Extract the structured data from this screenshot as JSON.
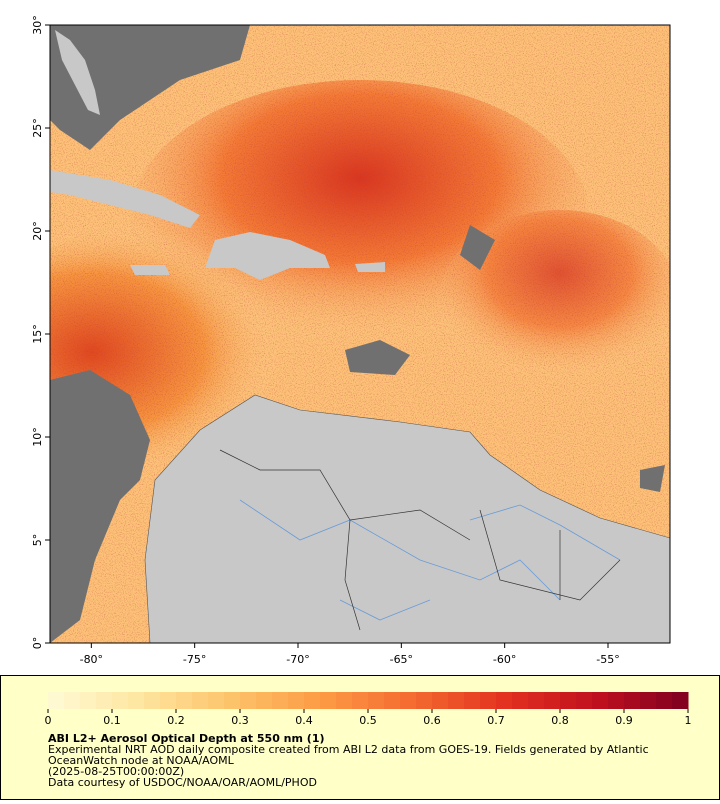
{
  "map": {
    "lon_range": [
      -82,
      -52
    ],
    "lat_range": [
      0,
      30
    ],
    "lon_ticks": [
      {
        "value": -80,
        "label": "-80°"
      },
      {
        "value": -75,
        "label": "-75°"
      },
      {
        "value": -70,
        "label": "-70°"
      },
      {
        "value": -65,
        "label": "-65°"
      },
      {
        "value": -60,
        "label": "-60°"
      },
      {
        "value": -55,
        "label": "-55°"
      }
    ],
    "lat_ticks": [
      {
        "value": 0,
        "label": "0°"
      },
      {
        "value": 5,
        "label": "5°"
      },
      {
        "value": 10,
        "label": "10°"
      },
      {
        "value": 15,
        "label": "15°"
      },
      {
        "value": 20,
        "label": "20°"
      },
      {
        "value": 25,
        "label": "25°"
      },
      {
        "value": 30,
        "label": "30°"
      }
    ]
  },
  "colorbar": {
    "range": [
      0,
      1
    ],
    "ticks": [
      0,
      0.1,
      0.2,
      0.3,
      0.4,
      0.5,
      0.6,
      0.7,
      0.8,
      0.9,
      1
    ],
    "colormap": [
      "#fffbd6",
      "#fee6a0",
      "#fdc46a",
      "#fc9a44",
      "#f46a30",
      "#e3311f",
      "#c0101e",
      "#7f0020"
    ]
  },
  "caption": {
    "title": "ABI L2+ Aerosol Optical Depth at 550 nm (1)",
    "lines": [
      "Experimental NRT AOD daily composite created from ABI L2 data from GOES-19. Fields generated by Atlantic",
      "OceanWatch node at NOAA/AOML",
      "(2025-08-25T00:00:00Z)",
      "Data courtesy of USDOC/NOAA/OAR/AOML/PHOD"
    ]
  }
}
